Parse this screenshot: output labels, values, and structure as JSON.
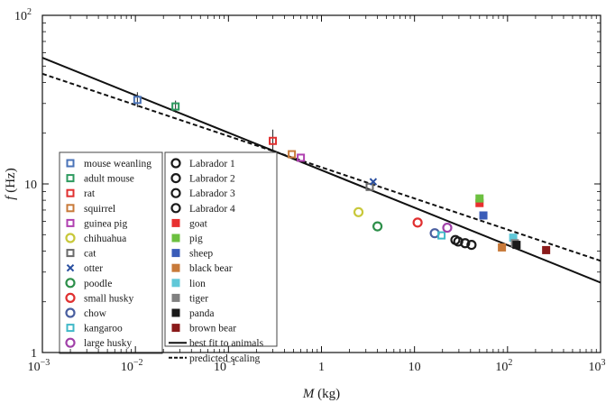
{
  "chart_data": {
    "type": "scatter",
    "xscale": "log",
    "yscale": "log",
    "xlim": [
      0.001,
      1000
    ],
    "ylim": [
      1,
      100
    ],
    "xlabel": {
      "var": "M",
      "unit": " (kg)"
    },
    "ylabel": {
      "var": "f",
      "unit": " (Hz)"
    },
    "x_ticks": [
      {
        "value": 0.001,
        "base": "10",
        "exp": "−3"
      },
      {
        "value": 0.01,
        "base": "10",
        "exp": "−2"
      },
      {
        "value": 0.1,
        "base": "10",
        "exp": "−1"
      },
      {
        "value": 1,
        "base": "1",
        "exp": ""
      },
      {
        "value": 10,
        "base": "10",
        "exp": ""
      },
      {
        "value": 100,
        "base": "10",
        "exp": "2"
      },
      {
        "value": 1000,
        "base": "10",
        "exp": "3"
      }
    ],
    "y_ticks": [
      {
        "value": 1,
        "base": "1",
        "exp": ""
      },
      {
        "value": 10,
        "base": "10",
        "exp": ""
      },
      {
        "value": 100,
        "base": "10",
        "exp": "2"
      }
    ],
    "series": [
      {
        "name": "mouse weanling",
        "marker": "open-square",
        "color": "#4a73b8",
        "points": [
          [
            0.0105,
            31.5
          ]
        ],
        "errors": [
          [
            28.5,
            35.0
          ]
        ]
      },
      {
        "name": "adult mouse",
        "marker": "open-square",
        "color": "#2d9a5f",
        "points": [
          [
            0.027,
            28.8
          ]
        ],
        "errors": [
          [
            26.5,
            31.2
          ]
        ]
      },
      {
        "name": "rat",
        "marker": "open-square",
        "color": "#e03030",
        "points": [
          [
            0.3,
            18.0
          ]
        ],
        "errors": [
          [
            15.5,
            21.0
          ]
        ]
      },
      {
        "name": "squirrel",
        "marker": "open-square",
        "color": "#c87a3a",
        "points": [
          [
            0.48,
            15.0
          ]
        ]
      },
      {
        "name": "guinea pig",
        "marker": "open-square",
        "color": "#b040b0",
        "points": [
          [
            0.6,
            14.3
          ]
        ]
      },
      {
        "name": "chihuahua",
        "marker": "open-circle",
        "color": "#c8c83a",
        "points": [
          [
            2.5,
            6.8
          ]
        ]
      },
      {
        "name": "cat",
        "marker": "open-square",
        "color": "#6a6a6a",
        "points": [
          [
            3.3,
            9.6
          ]
        ]
      },
      {
        "name": "otter",
        "marker": "cross",
        "color": "#2a4fa0",
        "points": [
          [
            3.6,
            10.3
          ]
        ]
      },
      {
        "name": "poodle",
        "marker": "open-circle",
        "color": "#2d8f4a",
        "points": [
          [
            4.0,
            5.6
          ]
        ]
      },
      {
        "name": "small husky",
        "marker": "open-circle",
        "color": "#e03030",
        "points": [
          [
            10.8,
            5.9
          ]
        ]
      },
      {
        "name": "chow",
        "marker": "open-circle",
        "color": "#4a5fa0",
        "points": [
          [
            16.5,
            5.1
          ]
        ]
      },
      {
        "name": "kangaroo",
        "marker": "open-square",
        "color": "#40b8c8",
        "points": [
          [
            19.5,
            4.95
          ]
        ]
      },
      {
        "name": "large husky",
        "marker": "open-circle",
        "color": "#a040a8",
        "points": [
          [
            22.5,
            5.5
          ]
        ]
      },
      {
        "name": "Labrador  1",
        "marker": "open-circle",
        "color": "#1a1a1a",
        "points": [
          [
            27.5,
            4.65
          ]
        ]
      },
      {
        "name": "Labrador  2",
        "marker": "open-circle",
        "color": "#1a1a1a",
        "points": [
          [
            29.5,
            4.55
          ]
        ]
      },
      {
        "name": "Labrador  3",
        "marker": "open-circle",
        "color": "#1a1a1a",
        "points": [
          [
            35.0,
            4.45
          ]
        ]
      },
      {
        "name": "Labrador  4",
        "marker": "open-circle",
        "color": "#1a1a1a",
        "points": [
          [
            41.0,
            4.35
          ]
        ]
      },
      {
        "name": "goat",
        "marker": "filled-square",
        "color": "#e83030",
        "points": [
          [
            50,
            7.7
          ]
        ]
      },
      {
        "name": "pig",
        "marker": "filled-square",
        "color": "#6cc040",
        "points": [
          [
            50,
            8.2
          ]
        ]
      },
      {
        "name": "sheep",
        "marker": "filled-square",
        "color": "#3a5cb8",
        "points": [
          [
            55,
            6.5
          ]
        ]
      },
      {
        "name": "black bear",
        "marker": "filled-square",
        "color": "#c87a3a",
        "points": [
          [
            87,
            4.2
          ]
        ]
      },
      {
        "name": "lion",
        "marker": "filled-square",
        "color": "#60c8d8",
        "points": [
          [
            115,
            4.8
          ]
        ]
      },
      {
        "name": "tiger",
        "marker": "filled-square",
        "color": "#808080",
        "points": [
          [
            120,
            4.45
          ]
        ]
      },
      {
        "name": "panda",
        "marker": "filled-square",
        "color": "#1a1a1a",
        "points": [
          [
            125,
            4.35
          ]
        ]
      },
      {
        "name": "brown bear",
        "marker": "filled-square",
        "color": "#8a1a1a",
        "points": [
          [
            260,
            4.05
          ]
        ]
      }
    ],
    "lines": [
      {
        "name": "best fit to animals",
        "style": "solid",
        "points": [
          [
            0.001,
            56
          ],
          [
            1000,
            2.6
          ]
        ]
      },
      {
        "name": "predicted scaling",
        "style": "dashed",
        "points": [
          [
            0.001,
            45
          ],
          [
            1000,
            3.5
          ]
        ]
      }
    ],
    "legend": {
      "placement": "lower-left",
      "columns": [
        [
          "mouse weanling",
          "adult mouse",
          "rat",
          "squirrel",
          "guinea pig",
          "chihuahua",
          "cat",
          "otter",
          "poodle",
          "small husky",
          "chow",
          "kangaroo",
          "large husky"
        ],
        [
          "Labrador  1",
          "Labrador  2",
          "Labrador  3",
          "Labrador  4",
          "goat",
          "pig",
          "sheep",
          "black bear",
          "lion",
          "tiger",
          "panda",
          "brown bear",
          "best fit to animals",
          "predicted scaling"
        ]
      ]
    }
  }
}
